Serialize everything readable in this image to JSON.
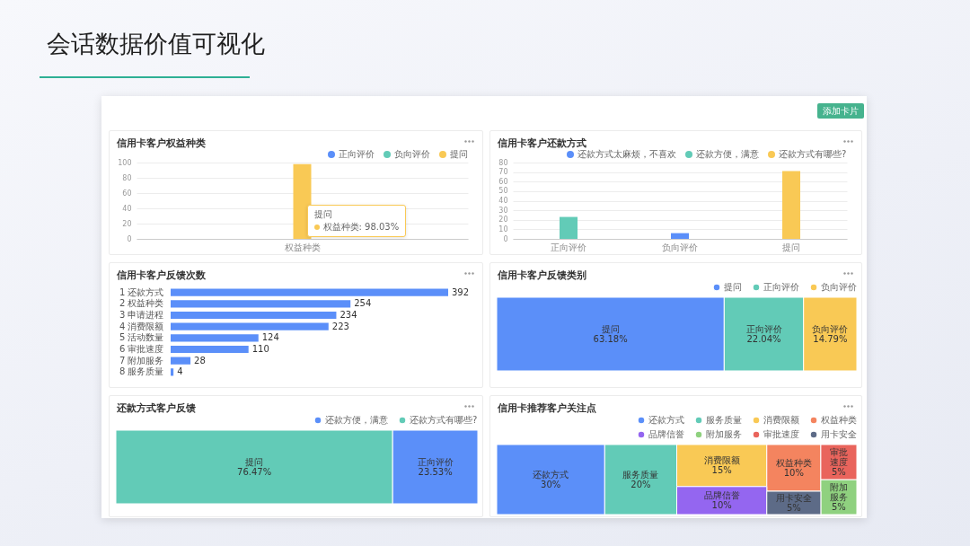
{
  "chart_data": [
    {
      "type": "other",
      "title": "会话数据价值可视化",
      "annotations": [
        "添加卡片"
      ]
    },
    {
      "type": "bar",
      "title": "信用卡客户权益种类",
      "categories": [
        "权益种类"
      ],
      "series": [
        {
          "name": "正向评价",
          "color": "#5b8ff9",
          "values": [
            null
          ]
        },
        {
          "name": "负向评价",
          "color": "#62cbb7",
          "values": [
            null
          ]
        },
        {
          "name": "提问",
          "color": "#f9c955",
          "values": [
            98.03
          ]
        }
      ],
      "ylim": [
        0,
        100
      ],
      "yticks": [
        0,
        20,
        40,
        60,
        80,
        100
      ],
      "grid": "y",
      "legend": "top right",
      "annotations": [
        "提问",
        "权益种类: 98.03%"
      ]
    },
    {
      "type": "bar",
      "title": "信用卡客户还款方式",
      "categories": [
        "正向评价",
        "负向评价",
        "提问"
      ],
      "series": [
        {
          "name": "还款方式太麻烦，不喜欢",
          "color": "#5b8ff9",
          "values": [
            null,
            6,
            null
          ]
        },
        {
          "name": "还款方便，满意",
          "color": "#62cbb7",
          "values": [
            23,
            null,
            null
          ]
        },
        {
          "name": "还款方式有哪些?",
          "color": "#f9c955",
          "values": [
            null,
            null,
            71
          ]
        }
      ],
      "ylim": [
        0,
        80
      ],
      "yticks": [
        0,
        10,
        20,
        30,
        40,
        50,
        60,
        70,
        80
      ],
      "grid": "y",
      "legend": "top right"
    },
    {
      "type": "bar",
      "title": "信用卡客户反馈次数",
      "orientation": "horizontal",
      "categories": [
        "1 还款方式",
        "2 权益种类",
        "3 申请进程",
        "4 消费限额",
        "5 活动数量",
        "6 审批速度",
        "7 附加服务",
        "8 服务质量"
      ],
      "values": [
        392,
        254,
        234,
        223,
        124,
        110,
        28,
        4
      ],
      "color": "#5b8ff9",
      "data_labels": true
    },
    {
      "type": "other",
      "title": "信用卡客户反馈类别",
      "series": [
        {
          "name": "提问",
          "color": "#5b8ff9",
          "values": [
            63.18
          ],
          "value_labels": [
            "63.18%"
          ]
        },
        {
          "name": "正向评价",
          "color": "#62cbb7",
          "values": [
            22.04
          ],
          "value_labels": [
            "22.04%"
          ]
        },
        {
          "name": "负向评价",
          "color": "#f9c955",
          "values": [
            14.79
          ],
          "value_labels": [
            "14.79%"
          ]
        }
      ],
      "legend": "top right"
    },
    {
      "type": "other",
      "title": "还款方式客户反馈",
      "categories": [
        "提问",
        "正向评价"
      ],
      "series": [
        {
          "name": "还款方便，满意",
          "color": "#5b8ff9",
          "values": [
            null,
            23.53
          ],
          "value_labels": [
            null,
            "23.53%"
          ]
        },
        {
          "name": "还款方式有哪些?",
          "color": "#62cbb7",
          "values": [
            76.47,
            null
          ],
          "value_labels": [
            "76.47%",
            null
          ]
        }
      ],
      "legend": "top right"
    },
    {
      "type": "other",
      "title": "信用卡推荐客户关注点",
      "categories": [
        "还款方式",
        "服务质量",
        "消费限额",
        "权益种类",
        "品牌信誉",
        "附加服务",
        "审批速度",
        "用卡安全"
      ],
      "series": [
        {
          "name": "还款方式",
          "color": "#5b8ff9",
          "values": [
            30,
            null,
            null,
            null,
            null,
            null,
            null,
            null
          ],
          "value_labels": [
            "30%",
            null,
            null,
            null,
            null,
            null,
            null,
            null
          ]
        },
        {
          "name": "服务质量",
          "color": "#62cbb7",
          "values": [
            null,
            20,
            null,
            null,
            null,
            null,
            null,
            null
          ],
          "value_labels": [
            null,
            "20%",
            null,
            null,
            null,
            null,
            null,
            null
          ]
        },
        {
          "name": "消费限额",
          "color": "#f9c955",
          "values": [
            null,
            null,
            15,
            null,
            null,
            null,
            null,
            null
          ],
          "value_labels": [
            null,
            null,
            "15%",
            null,
            null,
            null,
            null,
            null
          ]
        },
        {
          "name": "权益种类",
          "color": "#f4845f",
          "values": [
            null,
            null,
            null,
            10,
            null,
            null,
            null,
            null
          ],
          "value_labels": [
            null,
            null,
            null,
            "10%",
            null,
            null,
            null,
            null
          ]
        },
        {
          "name": "品牌信誉",
          "color": "#9466f0",
          "values": [
            null,
            null,
            null,
            null,
            10,
            null,
            null,
            null
          ],
          "value_labels": [
            null,
            null,
            null,
            null,
            "10%",
            null,
            null,
            null
          ]
        },
        {
          "name": "附加服务",
          "color": "#8fd17f",
          "values": [
            null,
            null,
            null,
            null,
            null,
            5,
            null,
            null
          ],
          "value_labels": [
            null,
            null,
            null,
            null,
            null,
            "5%",
            null,
            null
          ]
        },
        {
          "name": "审批速度",
          "color": "#e9645c",
          "values": [
            null,
            null,
            null,
            null,
            null,
            null,
            5,
            null
          ],
          "value_labels": [
            null,
            null,
            null,
            null,
            null,
            null,
            "5%",
            null
          ]
        },
        {
          "name": "用卡安全",
          "color": "#5d6b87",
          "values": [
            null,
            null,
            null,
            null,
            null,
            null,
            null,
            5
          ],
          "value_labels": [
            null,
            null,
            null,
            null,
            null,
            null,
            null,
            "5%"
          ]
        }
      ],
      "legend": "top right"
    }
  ]
}
